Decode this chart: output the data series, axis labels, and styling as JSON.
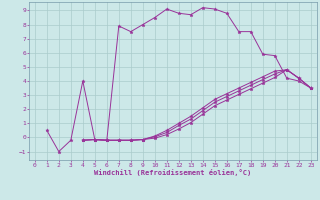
{
  "xlabel": "Windchill (Refroidissement éolien,°C)",
  "background_color": "#cce8e8",
  "grid_color": "#aacccc",
  "line_color": "#993399",
  "xlim": [
    -0.5,
    23.5
  ],
  "ylim": [
    -1.6,
    9.6
  ],
  "yticks": [
    -1,
    0,
    1,
    2,
    3,
    4,
    5,
    6,
    7,
    8,
    9
  ],
  "xticks": [
    0,
    1,
    2,
    3,
    4,
    5,
    6,
    7,
    8,
    9,
    10,
    11,
    12,
    13,
    14,
    15,
    16,
    17,
    18,
    19,
    20,
    21,
    22,
    23
  ],
  "c1_x": [
    1,
    2,
    3,
    4,
    5,
    6,
    7,
    8,
    9,
    10,
    11,
    12,
    13,
    14,
    15,
    16,
    17,
    18,
    19,
    20,
    21,
    22,
    23
  ],
  "c1_y": [
    0.5,
    -1.0,
    -0.2,
    4.0,
    -0.15,
    -0.2,
    7.9,
    7.5,
    8.0,
    8.5,
    9.1,
    8.8,
    8.7,
    9.2,
    9.1,
    8.8,
    7.5,
    7.5,
    5.9,
    5.8,
    4.2,
    4.0,
    3.5
  ],
  "c2_x": [
    4,
    5,
    6,
    7,
    8,
    9,
    10,
    11,
    12,
    13,
    14,
    15,
    16,
    17,
    18,
    19,
    20,
    21,
    22,
    23
  ],
  "c2_y": [
    -0.2,
    -0.15,
    -0.2,
    -0.2,
    -0.2,
    -0.15,
    0.1,
    0.5,
    1.0,
    1.5,
    2.1,
    2.7,
    3.1,
    3.5,
    3.9,
    4.3,
    4.7,
    4.8,
    4.2,
    3.5
  ],
  "c3_x": [
    4,
    5,
    6,
    7,
    8,
    9,
    10,
    11,
    12,
    13,
    14,
    15,
    16,
    17,
    18,
    19,
    20,
    21,
    22,
    23
  ],
  "c3_y": [
    -0.2,
    -0.15,
    -0.2,
    -0.2,
    -0.2,
    -0.15,
    0.05,
    0.35,
    0.85,
    1.3,
    1.9,
    2.5,
    2.9,
    3.3,
    3.7,
    4.1,
    4.5,
    4.8,
    4.2,
    3.5
  ],
  "c4_x": [
    4,
    5,
    6,
    7,
    8,
    9,
    10,
    11,
    12,
    13,
    14,
    15,
    16,
    17,
    18,
    19,
    20,
    21,
    22,
    23
  ],
  "c4_y": [
    -0.2,
    -0.15,
    -0.2,
    -0.2,
    -0.2,
    -0.15,
    -0.05,
    0.2,
    0.6,
    1.05,
    1.65,
    2.25,
    2.65,
    3.05,
    3.45,
    3.85,
    4.25,
    4.8,
    4.2,
    3.5
  ]
}
